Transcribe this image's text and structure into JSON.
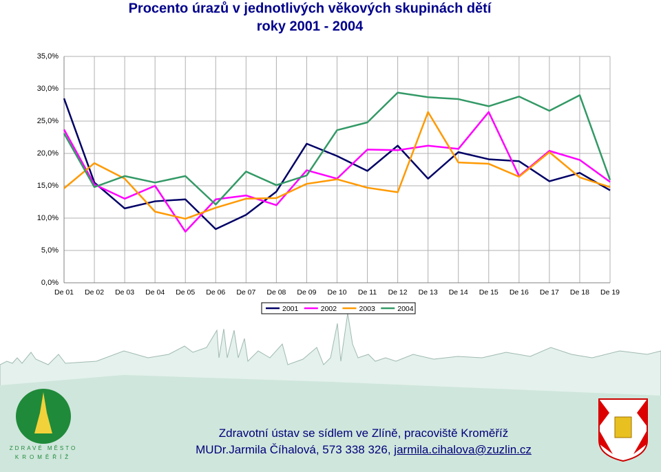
{
  "chart_data": {
    "type": "line",
    "title": "Procento úrazů v jednotlivých věkových skupinách dětí",
    "subtitle": "roky 2001 - 2004",
    "categories": [
      "De 01",
      "De 02",
      "De 03",
      "De 04",
      "De 05",
      "De 06",
      "De 07",
      "De 08",
      "De 09",
      "De 10",
      "De 11",
      "De 12",
      "De 13",
      "De 14",
      "De 15",
      "De 16",
      "De 17",
      "De 18",
      "De 19"
    ],
    "series": [
      {
        "name": "2001",
        "color": "#000066",
        "values": [
          28.5,
          15.5,
          11.5,
          12.6,
          12.9,
          8.3,
          10.5,
          14.1,
          21.5,
          19.6,
          17.3,
          21.2,
          16.1,
          20.2,
          19.1,
          18.8,
          15.7,
          17.0,
          14.3
        ]
      },
      {
        "name": "2002",
        "color": "#ff00ff",
        "values": [
          23.7,
          15.2,
          13.0,
          15.0,
          7.9,
          12.9,
          13.5,
          12.0,
          17.4,
          16.1,
          20.6,
          20.5,
          21.2,
          20.7,
          26.4,
          16.5,
          20.4,
          19.0,
          15.6
        ]
      },
      {
        "name": "2003",
        "color": "#ff9900",
        "values": [
          14.6,
          18.5,
          16.1,
          11.0,
          9.9,
          11.6,
          13.0,
          13.1,
          15.3,
          16.0,
          14.7,
          14.0,
          26.4,
          18.6,
          18.4,
          16.4,
          20.2,
          16.3,
          14.8
        ]
      },
      {
        "name": "2004",
        "color": "#339966",
        "values": [
          23.1,
          14.8,
          16.5,
          15.5,
          16.5,
          12.1,
          17.2,
          15.1,
          16.6,
          23.6,
          24.8,
          29.4,
          28.7,
          28.4,
          27.3,
          28.8,
          26.6,
          29.0,
          15.9
        ]
      }
    ],
    "ylim": [
      0,
      35
    ],
    "yticks": [
      {
        "value": 0,
        "label": "0,0%"
      },
      {
        "value": 5,
        "label": "5,0%"
      },
      {
        "value": 10,
        "label": "10,0%"
      },
      {
        "value": 15,
        "label": "15,0%"
      },
      {
        "value": 20,
        "label": "20,0%"
      },
      {
        "value": 25,
        "label": "25,0%"
      },
      {
        "value": 30,
        "label": "30,0%"
      },
      {
        "value": 35,
        "label": "35,0%"
      }
    ],
    "grid": true,
    "legend": "bottom"
  },
  "footer": {
    "logo_top": "ZDRAVÉ MĚSTO",
    "logo_bottom": "KROMĚŘÍŽ",
    "institution": "Zdravotní ústav se sídlem ve Zlíně, pracoviště Kroměříž",
    "contact": "MUDr.Jarmila Číhalová, 573 338 326,",
    "email": "jarmila.cihalova@zuzlin.cz"
  }
}
